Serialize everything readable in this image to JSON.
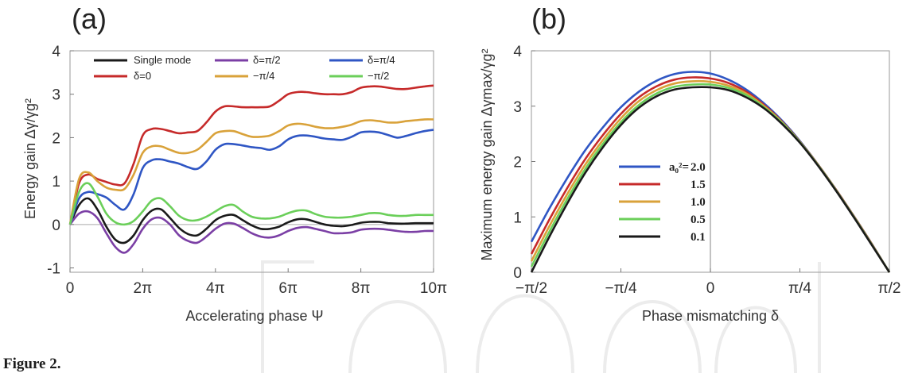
{
  "caption": "Figure 2.",
  "chart_data": [
    {
      "panel_label": "(a)",
      "type": "line",
      "xlabel": "Accelerating phase Ψ",
      "ylabel": "Energy gain Δγ/γg²",
      "xlim": [
        0,
        10
      ],
      "ylim": [
        -1.1,
        4.0
      ],
      "x_unit": "π",
      "xticks": [
        {
          "value": 0,
          "label": "0"
        },
        {
          "value": 2,
          "label": "2π"
        },
        {
          "value": 4,
          "label": "4π"
        },
        {
          "value": 6,
          "label": "6π"
        },
        {
          "value": 8,
          "label": "8π"
        },
        {
          "value": 10,
          "label": "10π"
        }
      ],
      "yticks": [
        {
          "value": -1,
          "label": "-1"
        },
        {
          "value": 0,
          "label": "0"
        },
        {
          "value": 1,
          "label": "1"
        },
        {
          "value": 2,
          "label": "2"
        },
        {
          "value": 3,
          "label": "3"
        },
        {
          "value": 4,
          "label": "4"
        }
      ],
      "zero_line": true,
      "grid": false,
      "legend_position": "top",
      "x": [
        0,
        0.25,
        0.5,
        0.75,
        1.0,
        1.25,
        1.5,
        1.75,
        2.0,
        2.25,
        2.5,
        2.75,
        3.0,
        3.25,
        3.5,
        3.75,
        4.0,
        4.25,
        4.5,
        4.75,
        5.0,
        5.25,
        5.5,
        5.75,
        6.0,
        6.25,
        6.5,
        6.75,
        7.0,
        7.25,
        7.5,
        7.75,
        8.0,
        8.25,
        8.5,
        8.75,
        9.0,
        9.25,
        9.5,
        9.75,
        10.0
      ],
      "series": [
        {
          "name": "Single mode",
          "color": "#1a1a1a",
          "legend_slot": 0,
          "values": [
            0,
            0.45,
            0.6,
            0.35,
            -0.05,
            -0.35,
            -0.42,
            -0.25,
            0.1,
            0.32,
            0.35,
            0.15,
            -0.08,
            -0.22,
            -0.25,
            -0.1,
            0.1,
            0.2,
            0.22,
            0.1,
            -0.02,
            -0.1,
            -0.1,
            -0.05,
            0.05,
            0.12,
            0.12,
            0.06,
            0,
            -0.03,
            -0.04,
            -0.01,
            0.04,
            0.06,
            0.06,
            0.03,
            0.02,
            0.02,
            0.03,
            0.03,
            0.03
          ]
        },
        {
          "name": "δ=0",
          "color": "#c62a2a",
          "legend_slot": 1,
          "values": [
            0,
            0.95,
            1.15,
            1.05,
            0.98,
            0.92,
            0.95,
            1.4,
            2.05,
            2.2,
            2.2,
            2.15,
            2.1,
            2.12,
            2.15,
            2.35,
            2.6,
            2.72,
            2.72,
            2.7,
            2.7,
            2.7,
            2.72,
            2.85,
            3.0,
            3.05,
            3.05,
            3.02,
            3.0,
            3.0,
            3.0,
            3.05,
            3.15,
            3.18,
            3.18,
            3.15,
            3.12,
            3.12,
            3.15,
            3.18,
            3.2
          ]
        },
        {
          "name": "δ=π/2",
          "color": "#7b3fa5",
          "legend_slot": 2,
          "values": [
            0,
            0.25,
            0.3,
            0.15,
            -0.2,
            -0.52,
            -0.65,
            -0.45,
            -0.1,
            0.12,
            0.15,
            0,
            -0.25,
            -0.38,
            -0.42,
            -0.28,
            -0.1,
            0.02,
            0.02,
            -0.08,
            -0.2,
            -0.28,
            -0.3,
            -0.25,
            -0.15,
            -0.08,
            -0.06,
            -0.1,
            -0.15,
            -0.2,
            -0.2,
            -0.18,
            -0.12,
            -0.1,
            -0.1,
            -0.12,
            -0.15,
            -0.17,
            -0.17,
            -0.15,
            -0.15
          ]
        },
        {
          "name": "−π/4",
          "color": "#d9a23a",
          "legend_slot": 3,
          "values": [
            0,
            1.05,
            1.2,
            1.0,
            0.85,
            0.8,
            0.82,
            1.15,
            1.65,
            1.8,
            1.8,
            1.72,
            1.65,
            1.65,
            1.72,
            1.9,
            2.1,
            2.15,
            2.15,
            2.08,
            2.02,
            2.02,
            2.05,
            2.15,
            2.28,
            2.32,
            2.3,
            2.25,
            2.22,
            2.22,
            2.25,
            2.3,
            2.38,
            2.4,
            2.38,
            2.35,
            2.35,
            2.38,
            2.4,
            2.42,
            2.42
          ]
        },
        {
          "name": "δ=π/4",
          "color": "#2f56c4",
          "legend_slot": 4,
          "values": [
            0,
            0.6,
            0.75,
            0.7,
            0.62,
            0.45,
            0.35,
            0.7,
            1.3,
            1.48,
            1.5,
            1.45,
            1.4,
            1.32,
            1.28,
            1.45,
            1.72,
            1.85,
            1.85,
            1.82,
            1.78,
            1.76,
            1.72,
            1.8,
            1.96,
            2.04,
            2.05,
            2.02,
            1.98,
            1.96,
            1.95,
            2.02,
            2.12,
            2.14,
            2.12,
            2.06,
            2.0,
            2.04,
            2.1,
            2.15,
            2.18
          ]
        },
        {
          "name": "−π/2",
          "color": "#6bcf5a",
          "legend_slot": 5,
          "values": [
            0,
            0.75,
            0.95,
            0.65,
            0.25,
            0.05,
            0.0,
            0.08,
            0.3,
            0.55,
            0.6,
            0.42,
            0.2,
            0.1,
            0.1,
            0.18,
            0.3,
            0.42,
            0.45,
            0.3,
            0.18,
            0.14,
            0.14,
            0.18,
            0.26,
            0.32,
            0.32,
            0.24,
            0.18,
            0.16,
            0.16,
            0.18,
            0.22,
            0.26,
            0.26,
            0.22,
            0.2,
            0.2,
            0.22,
            0.22,
            0.22
          ]
        }
      ]
    },
    {
      "panel_label": "(b)",
      "type": "line",
      "xlabel": "Phase mismatching δ",
      "ylabel": "Maximum energy gain Δγmax/γg²",
      "xlim": [
        -2,
        2
      ],
      "ylim": [
        0,
        4
      ],
      "x_unit": "π/4",
      "xticks": [
        {
          "value": -2,
          "label": "−π/2"
        },
        {
          "value": -1,
          "label": "−π/4"
        },
        {
          "value": 0,
          "label": "0"
        },
        {
          "value": 1,
          "label": "π/4"
        },
        {
          "value": 2,
          "label": "π/2"
        }
      ],
      "yticks": [
        {
          "value": 0,
          "label": "0"
        },
        {
          "value": 1,
          "label": "1"
        },
        {
          "value": 2,
          "label": "2"
        },
        {
          "value": 3,
          "label": "3"
        },
        {
          "value": 4,
          "label": "4"
        }
      ],
      "center_line": true,
      "grid": false,
      "legend_position": "center-left",
      "legend_title": "a₀²=",
      "x": [
        -2.0,
        -1.8,
        -1.6,
        -1.4,
        -1.2,
        -1.0,
        -0.8,
        -0.6,
        -0.4,
        -0.2,
        0.0,
        0.2,
        0.4,
        0.6,
        0.8,
        1.0,
        1.2,
        1.4,
        1.6,
        1.8,
        2.0
      ],
      "series": [
        {
          "name": "2.0",
          "color": "#2f56c4",
          "values": [
            0.55,
            1.15,
            1.7,
            2.2,
            2.62,
            2.98,
            3.26,
            3.46,
            3.58,
            3.62,
            3.59,
            3.48,
            3.3,
            3.05,
            2.74,
            2.37,
            1.95,
            1.5,
            1.02,
            0.52,
            0.0
          ]
        },
        {
          "name": "1.5",
          "color": "#c62a2a",
          "values": [
            0.33,
            0.95,
            1.52,
            2.04,
            2.48,
            2.86,
            3.16,
            3.36,
            3.48,
            3.52,
            3.5,
            3.42,
            3.26,
            3.02,
            2.72,
            2.36,
            1.95,
            1.5,
            1.02,
            0.52,
            0.0
          ]
        },
        {
          "name": "1.0",
          "color": "#d9a23a",
          "values": [
            0.2,
            0.83,
            1.41,
            1.94,
            2.39,
            2.78,
            3.09,
            3.29,
            3.41,
            3.45,
            3.44,
            3.37,
            3.23,
            3.0,
            2.71,
            2.35,
            1.94,
            1.49,
            1.01,
            0.51,
            0.0
          ]
        },
        {
          "name": "0.5",
          "color": "#6bcf5a",
          "values": [
            0.1,
            0.73,
            1.32,
            1.86,
            2.32,
            2.71,
            3.02,
            3.23,
            3.35,
            3.39,
            3.39,
            3.33,
            3.2,
            2.98,
            2.7,
            2.35,
            1.94,
            1.49,
            1.01,
            0.51,
            0.0
          ]
        },
        {
          "name": "0.1",
          "color": "#1a1a1a",
          "values": [
            0.0,
            0.64,
            1.24,
            1.79,
            2.26,
            2.66,
            2.97,
            3.18,
            3.3,
            3.34,
            3.34,
            3.29,
            3.16,
            2.96,
            2.68,
            2.34,
            1.93,
            1.48,
            1.0,
            0.5,
            0.0
          ]
        }
      ]
    }
  ]
}
